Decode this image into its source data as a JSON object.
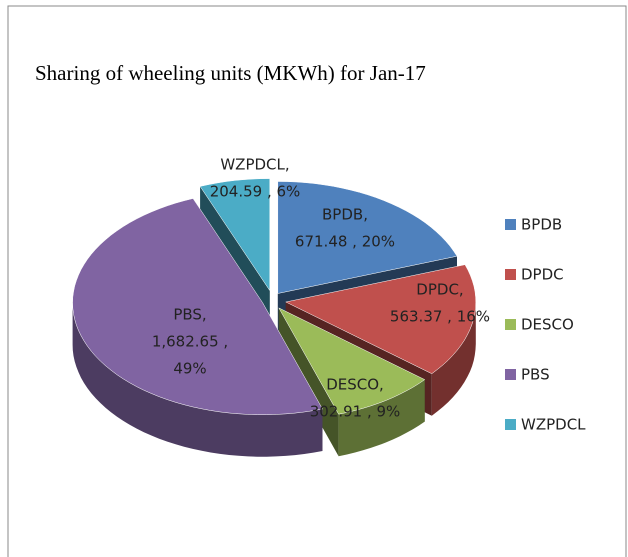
{
  "chart_data": {
    "type": "pie3d",
    "title": "Sharing of wheeling units (MKWh) for Jan-17",
    "categories": [
      "BPDB",
      "DPDC",
      "DESCO",
      "PBS",
      "WZPDCL"
    ],
    "values": [
      671.48,
      563.37,
      302.91,
      1682.65,
      204.59
    ],
    "value_labels": [
      [
        "BPDB,",
        "671.48 , 20%"
      ],
      [
        "DPDC,",
        "563.37 , 16%"
      ],
      [
        "DESCO,",
        "302.91 , 9%"
      ],
      [
        "PBS,",
        "1,682.65 ,",
        "49%"
      ],
      [
        "WZPDCL,",
        "204.59 , 6%"
      ]
    ],
    "colors": [
      "#4f81bd",
      "#c0504d",
      "#9bbb59",
      "#8064a2",
      "#4bacc6"
    ],
    "legend": "right"
  }
}
